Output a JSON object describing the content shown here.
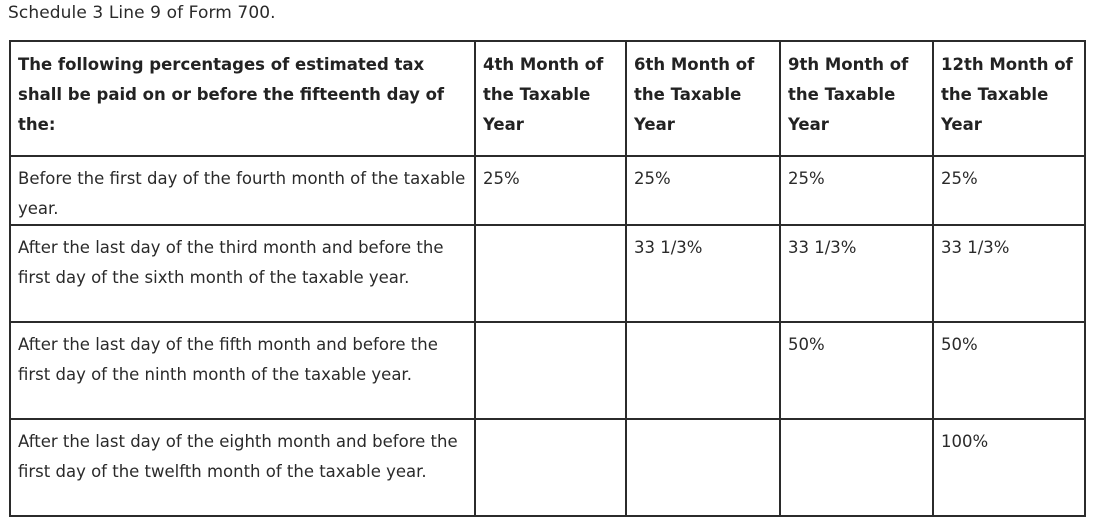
{
  "caption": "Schedule 3 Line 9 of Form 700.",
  "table": {
    "headers": [
      "The following percentages of estimated tax shall be paid on or before the fifteenth day of the:",
      "4th Month of the Taxable Year",
      "6th Month of the Taxable Year",
      "9th Month of the Taxable Year",
      "12th Month of the Taxable Year"
    ],
    "rows": [
      {
        "period": "Before the first day of the fourth month of the taxable year.",
        "cells": [
          "25%",
          "25%",
          "25%",
          "25%"
        ]
      },
      {
        "period": "After the last day of the third month and before the first day of the sixth month of the taxable year.",
        "cells": [
          "",
          "33 1/3%",
          "33 1/3%",
          "33 1/3%"
        ]
      },
      {
        "period": "After the last day of the fifth month and before the first day of the ninth month of the taxable year.",
        "cells": [
          "",
          "",
          "50%",
          "50%"
        ]
      },
      {
        "period": "After the last day of the eighth month and before the first day of the twelfth month of the taxable year.",
        "cells": [
          "",
          "",
          "",
          "100%"
        ]
      }
    ]
  }
}
